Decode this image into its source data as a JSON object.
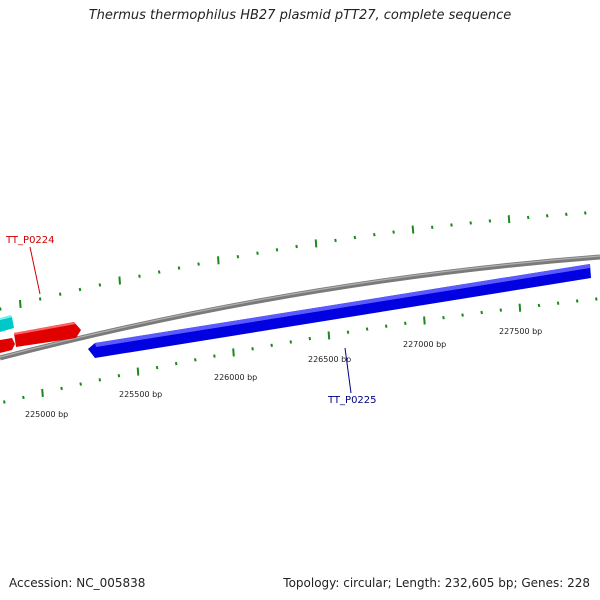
{
  "title": "Thermus thermophilus HB27 plasmid pTT27, complete sequence",
  "footer": {
    "accession": "Accession: NC_005838",
    "summary": "Topology: circular; Length: 232,605 bp; Genes: 228"
  },
  "colors": {
    "backbone": "#808080",
    "tick": "#1a8a1a",
    "gene_forward": "#ff0000",
    "gene_reverse": "#0000ff",
    "gene_other": "#00cccc",
    "label_forward": "#cc0000",
    "label_reverse": "#000080"
  },
  "scale": {
    "labels": [
      "225000 bp",
      "225500 bp",
      "226000 bp",
      "226500 bp",
      "227000 bp",
      "227500 bp"
    ]
  },
  "genes": [
    {
      "name": "TT_P0224",
      "strand": "forward"
    },
    {
      "name": "TT_P0225",
      "strand": "reverse"
    }
  ]
}
